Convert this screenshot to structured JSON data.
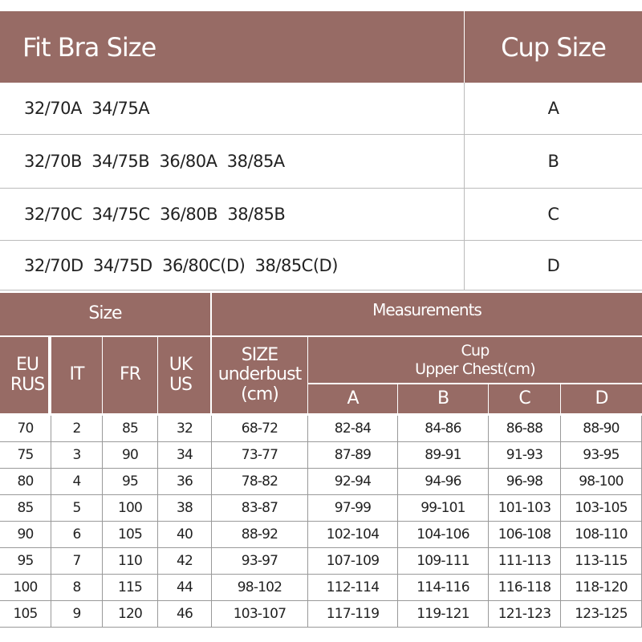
{
  "fit_table": {
    "headers": {
      "fit": "Fit Bra Size",
      "cup": "Cup Size"
    },
    "rows": [
      {
        "fit": "32/70A  34/75A",
        "cup": "A"
      },
      {
        "fit": "32/70B  34/75B  36/80A  38/85A",
        "cup": "B"
      },
      {
        "fit": "32/70C  34/75C  36/80B  38/85B",
        "cup": "C"
      },
      {
        "fit": "32/70D  34/75D  36/80C(D)  38/85C(D)",
        "cup": "D"
      }
    ]
  },
  "size_table": {
    "group_headers": {
      "size": "Size",
      "measurements": "Measurements"
    },
    "col_headers": {
      "eu": "EU RUS",
      "it": "IT",
      "fr": "FR",
      "uk": "UK US",
      "underbust": "SIZE underbust (cm)",
      "cup": "Cup",
      "upper_chest": "Upper Chest(cm)",
      "a": "A",
      "b": "B",
      "c": "C",
      "d": "D"
    },
    "rows": [
      [
        "70",
        "2",
        "85",
        "32",
        "68-72",
        "82-84",
        "84-86",
        "86-88",
        "88-90"
      ],
      [
        "75",
        "3",
        "90",
        "34",
        "73-77",
        "87-89",
        "89-91",
        "91-93",
        "93-95"
      ],
      [
        "80",
        "4",
        "95",
        "36",
        "78-82",
        "92-94",
        "94-96",
        "96-98",
        "98-100"
      ],
      [
        "85",
        "5",
        "100",
        "38",
        "83-87",
        "97-99",
        "99-101",
        "101-103",
        "103-105"
      ],
      [
        "90",
        "6",
        "105",
        "40",
        "88-92",
        "102-104",
        "104-106",
        "106-108",
        "108-110"
      ],
      [
        "95",
        "7",
        "110",
        "42",
        "93-97",
        "107-109",
        "109-111",
        "111-113",
        "113-115"
      ],
      [
        "100",
        "8",
        "115",
        "44",
        "98-102",
        "112-114",
        "114-116",
        "116-118",
        "118-120"
      ],
      [
        "105",
        "9",
        "120",
        "46",
        "103-107",
        "117-119",
        "119-121",
        "121-123",
        "123-125"
      ]
    ]
  },
  "colors": {
    "header": "#976b65",
    "header_text": "#ffffff"
  }
}
